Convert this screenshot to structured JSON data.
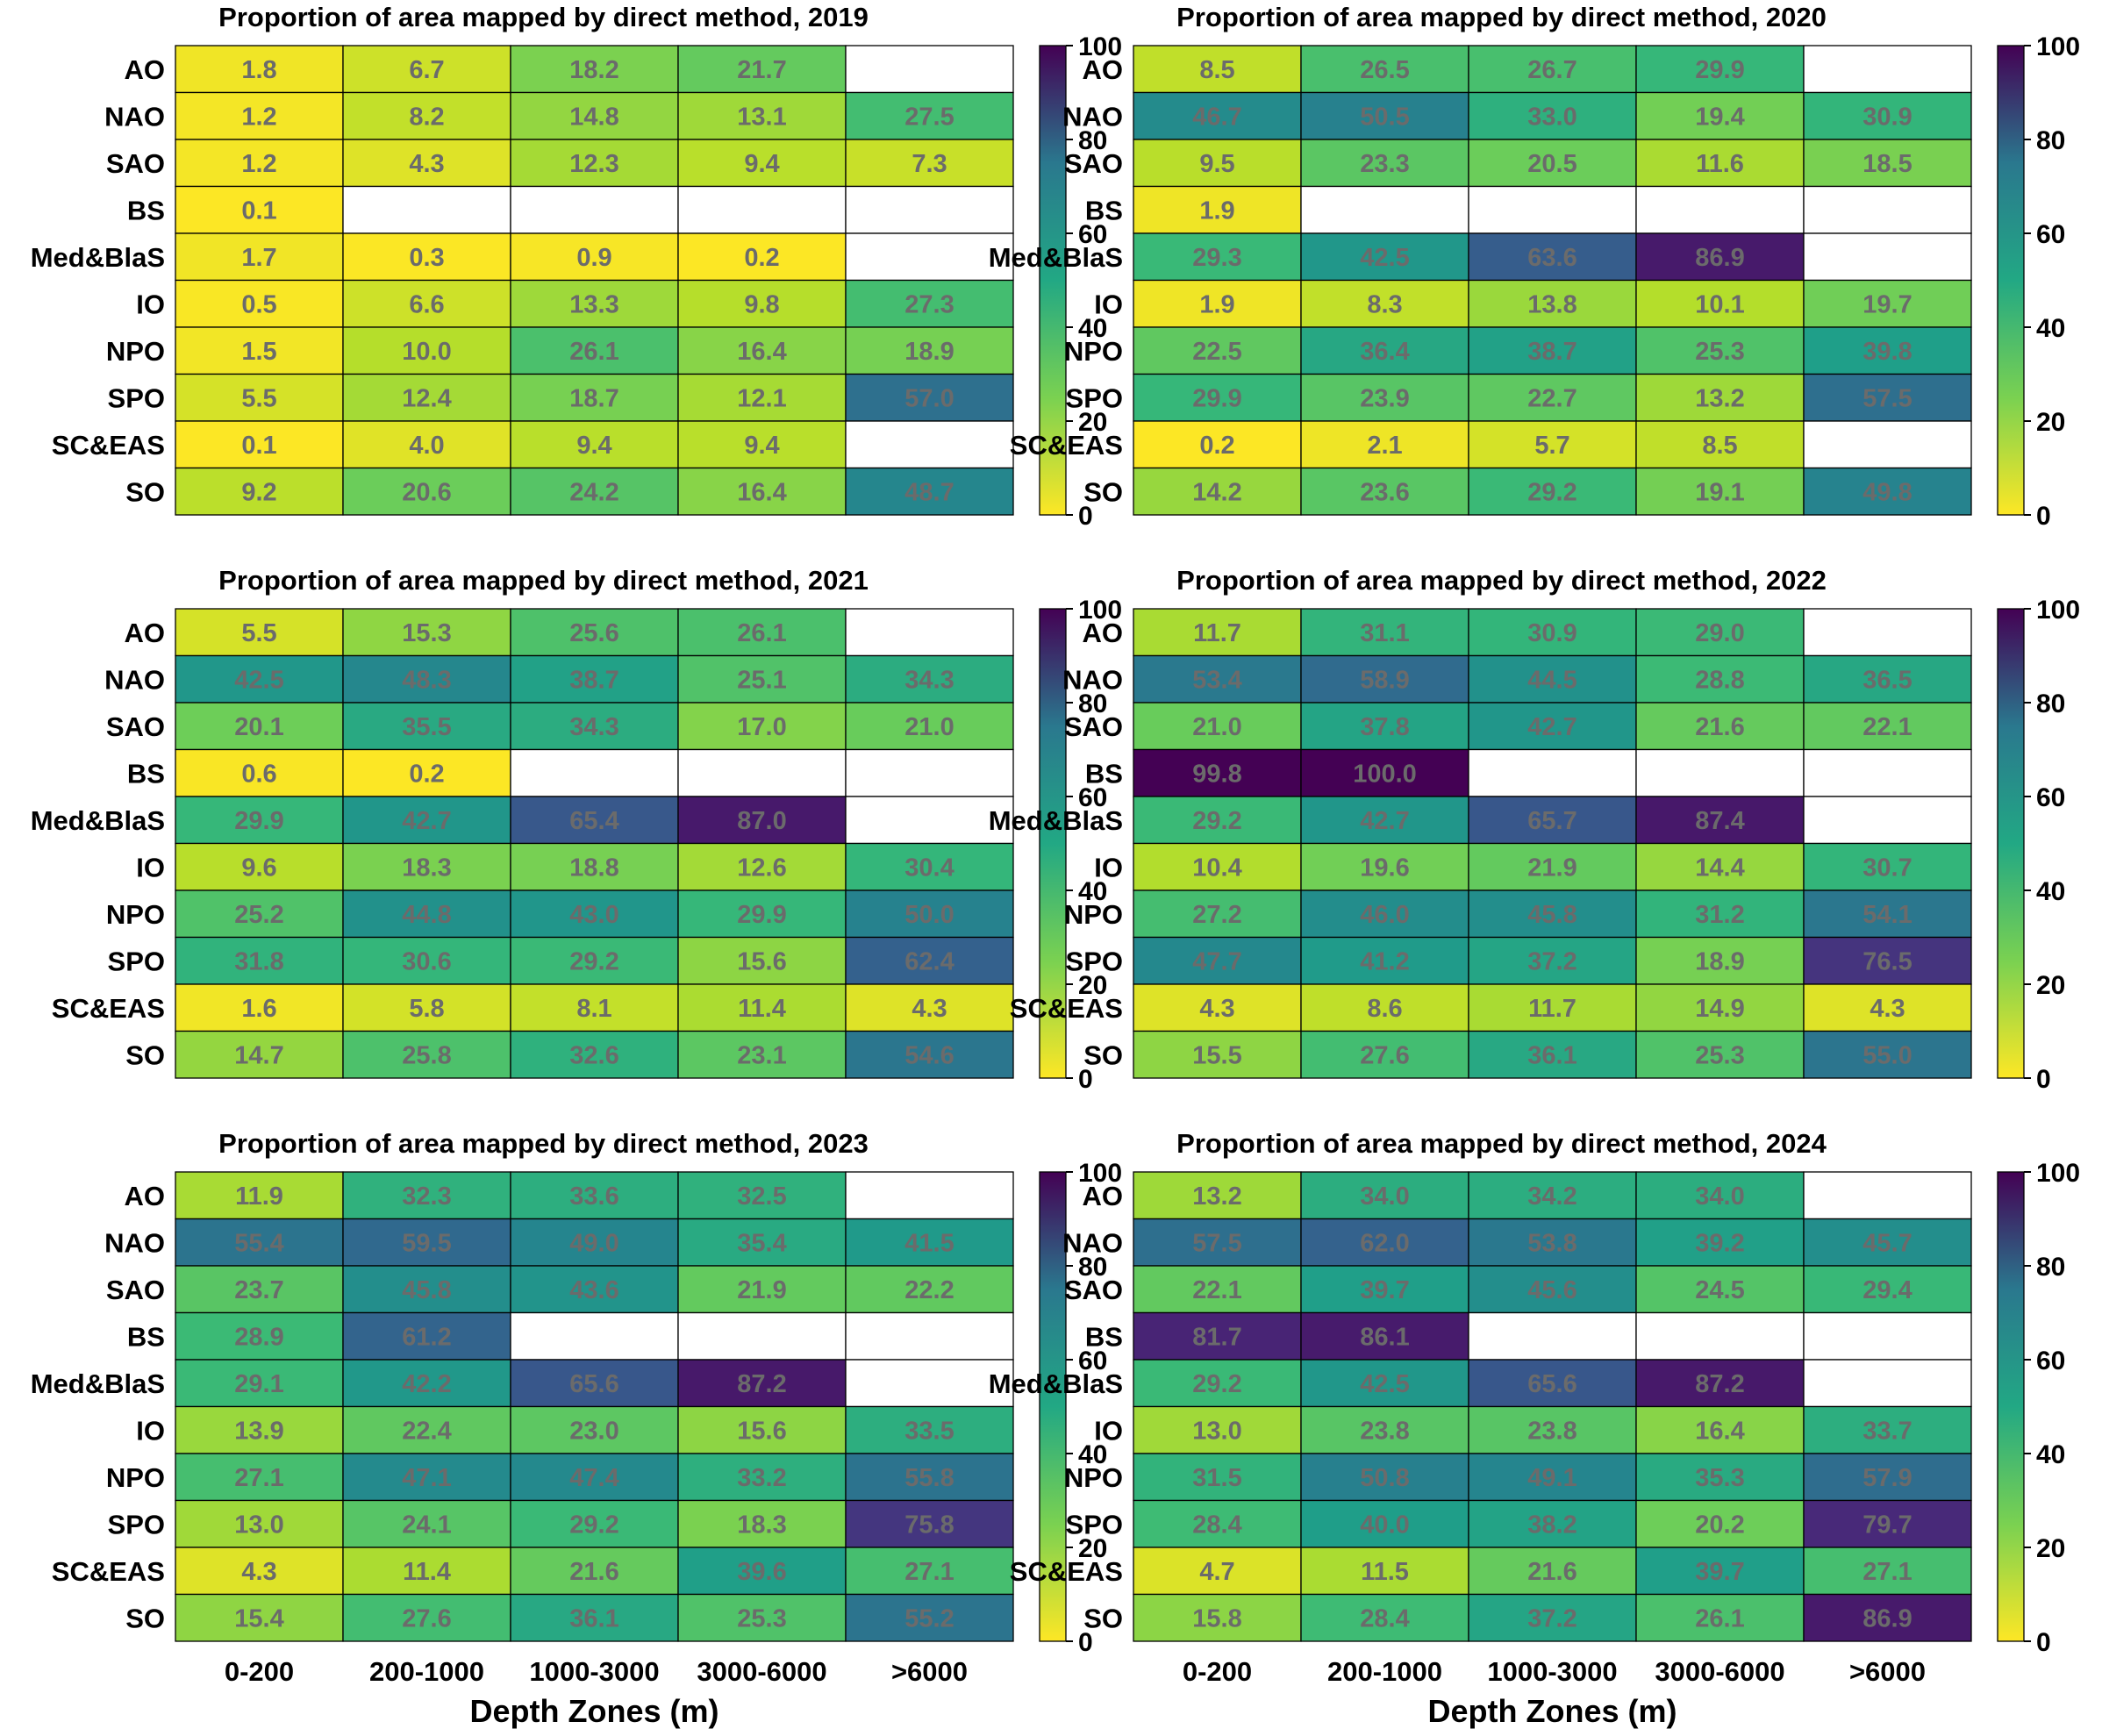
{
  "chart_data": {
    "type": "heatmap",
    "rows": [
      "AO",
      "NAO",
      "SAO",
      "BS",
      "Med&BlaS",
      "IO",
      "NPO",
      "SPO",
      "SC&EAS",
      "SO"
    ],
    "columns": [
      "0-200",
      "200-1000",
      "1000-3000",
      "3000-6000",
      ">6000"
    ],
    "xlabel": "Depth Zones (m)",
    "colorbar": {
      "range": [
        0,
        100
      ],
      "ticks": [
        0,
        20,
        40,
        60,
        80,
        100
      ],
      "colormap": "viridis_r"
    },
    "panels": [
      {
        "title": "Proportion of area mapped by direct method, 2019",
        "values": [
          [
            1.8,
            6.7,
            18.2,
            21.7,
            null
          ],
          [
            1.2,
            8.2,
            14.8,
            13.1,
            27.5
          ],
          [
            1.2,
            4.3,
            12.3,
            9.4,
            7.3
          ],
          [
            0.1,
            null,
            null,
            null,
            null
          ],
          [
            1.7,
            0.3,
            0.9,
            0.2,
            null
          ],
          [
            0.5,
            6.6,
            13.3,
            9.8,
            27.3
          ],
          [
            1.5,
            10.0,
            26.1,
            16.4,
            18.9
          ],
          [
            5.5,
            12.4,
            18.7,
            12.1,
            57.0
          ],
          [
            0.1,
            4.0,
            9.4,
            9.4,
            null
          ],
          [
            9.2,
            20.6,
            24.2,
            16.4,
            48.7
          ]
        ]
      },
      {
        "title": "Proportion of area mapped by direct method, 2020",
        "values": [
          [
            8.5,
            26.5,
            26.7,
            29.9,
            null
          ],
          [
            46.7,
            50.5,
            33.0,
            19.4,
            30.9
          ],
          [
            9.5,
            23.3,
            20.5,
            11.6,
            18.5
          ],
          [
            1.9,
            null,
            null,
            null,
            null
          ],
          [
            29.3,
            42.5,
            63.6,
            86.9,
            null
          ],
          [
            1.9,
            8.3,
            13.8,
            10.1,
            19.7
          ],
          [
            22.5,
            36.4,
            38.7,
            25.3,
            39.8
          ],
          [
            29.9,
            23.9,
            22.7,
            13.2,
            57.5
          ],
          [
            0.2,
            2.1,
            5.7,
            8.5,
            null
          ],
          [
            14.2,
            23.6,
            29.2,
            19.1,
            49.8
          ]
        ]
      },
      {
        "title": "Proportion of area mapped by direct method, 2021",
        "values": [
          [
            5.5,
            15.3,
            25.6,
            26.1,
            null
          ],
          [
            42.5,
            48.3,
            38.7,
            25.1,
            34.3
          ],
          [
            20.1,
            35.5,
            34.3,
            17.0,
            21.0
          ],
          [
            0.6,
            0.2,
            null,
            null,
            null
          ],
          [
            29.9,
            42.7,
            65.4,
            87.0,
            null
          ],
          [
            9.6,
            18.3,
            18.8,
            12.6,
            30.4
          ],
          [
            25.2,
            44.8,
            43.0,
            29.9,
            50.0
          ],
          [
            31.8,
            30.6,
            29.2,
            15.6,
            62.4
          ],
          [
            1.6,
            5.8,
            8.1,
            11.4,
            4.3
          ],
          [
            14.7,
            25.8,
            32.6,
            23.1,
            54.6
          ]
        ]
      },
      {
        "title": "Proportion of area mapped by direct method, 2022",
        "values": [
          [
            11.7,
            31.1,
            30.9,
            29.0,
            null
          ],
          [
            53.4,
            58.9,
            44.5,
            28.8,
            36.5
          ],
          [
            21.0,
            37.8,
            42.7,
            21.6,
            22.1
          ],
          [
            99.8,
            100.0,
            null,
            null,
            null
          ],
          [
            29.2,
            42.7,
            65.7,
            87.4,
            null
          ],
          [
            10.4,
            19.6,
            21.9,
            14.4,
            30.7
          ],
          [
            27.2,
            46.0,
            45.8,
            31.2,
            54.1
          ],
          [
            47.7,
            41.2,
            37.2,
            18.9,
            76.5
          ],
          [
            4.3,
            8.6,
            11.7,
            14.9,
            4.3
          ],
          [
            15.5,
            27.6,
            36.1,
            25.3,
            55.0
          ]
        ]
      },
      {
        "title": "Proportion of area mapped by direct method, 2023",
        "values": [
          [
            11.9,
            32.3,
            33.6,
            32.5,
            null
          ],
          [
            55.4,
            59.5,
            49.0,
            35.4,
            41.5
          ],
          [
            23.7,
            45.8,
            43.6,
            21.9,
            22.2
          ],
          [
            28.9,
            61.2,
            null,
            null,
            null
          ],
          [
            29.1,
            42.2,
            65.6,
            87.2,
            null
          ],
          [
            13.9,
            22.4,
            23.0,
            15.6,
            33.5
          ],
          [
            27.1,
            47.1,
            47.4,
            33.2,
            55.8
          ],
          [
            13.0,
            24.1,
            29.2,
            18.3,
            75.8
          ],
          [
            4.3,
            11.4,
            21.6,
            39.6,
            27.1
          ],
          [
            15.4,
            27.6,
            36.1,
            25.3,
            55.2
          ]
        ]
      },
      {
        "title": "Proportion of area mapped by direct method, 2024",
        "values": [
          [
            13.2,
            34.0,
            34.2,
            34.0,
            null
          ],
          [
            57.5,
            62.0,
            53.8,
            39.2,
            45.7
          ],
          [
            22.1,
            39.7,
            45.6,
            24.5,
            29.4
          ],
          [
            81.7,
            86.1,
            null,
            null,
            null
          ],
          [
            29.2,
            42.5,
            65.6,
            87.2,
            null
          ],
          [
            13.0,
            23.8,
            23.8,
            16.4,
            33.7
          ],
          [
            31.5,
            50.8,
            49.1,
            35.3,
            57.9
          ],
          [
            28.4,
            40.0,
            38.2,
            20.2,
            79.7
          ],
          [
            4.7,
            11.5,
            21.6,
            39.7,
            27.1
          ],
          [
            15.8,
            28.4,
            37.2,
            26.1,
            86.9
          ]
        ]
      }
    ]
  }
}
